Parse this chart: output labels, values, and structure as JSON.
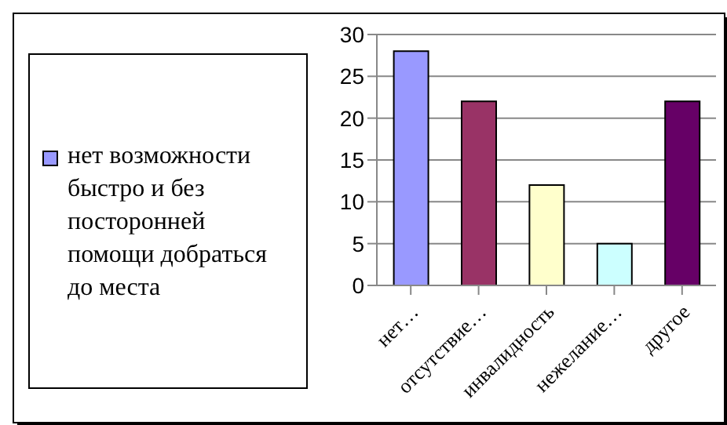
{
  "chart_data": {
    "type": "bar",
    "categories": [
      "нет…",
      "отсутствие…",
      "инвалидность",
      "нежелание…",
      "другое"
    ],
    "series": [
      {
        "name": "нет возможности быстро и без посторонней помощи добраться до места",
        "color": "#9999ff",
        "colors": [
          "#9999ff",
          "#993366",
          "#ffffcc",
          "#ccffff",
          "#660066"
        ],
        "values": [
          28,
          22,
          12,
          5,
          22
        ]
      }
    ],
    "ylim": [
      0,
      30
    ],
    "yticks": [
      0,
      5,
      10,
      15,
      20,
      25,
      30
    ],
    "grid": "y",
    "legend": "left"
  }
}
